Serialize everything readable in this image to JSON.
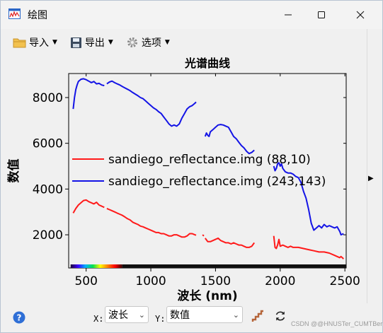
{
  "window": {
    "title": "绘图",
    "app_icon": "waveform-icon",
    "controls": [
      "minimize-icon",
      "maximize-icon",
      "close-icon"
    ]
  },
  "toolbar": {
    "import_label": "导入",
    "export_label": "导出",
    "options_label": "选项"
  },
  "bottombar": {
    "x_label": "X:",
    "x_value": "波长",
    "y_label": "Y:",
    "y_value": "数值",
    "watermark": "CSDN @@HNUSTer_CUMTBer"
  },
  "colors": {
    "series1": "#ff1a1a",
    "series2": "#1414e6",
    "background": "#f0f0f0"
  },
  "chart_data": {
    "type": "line",
    "title": "光谱曲线",
    "xlabel": "波长 (nm)",
    "ylabel": "数值",
    "xlim": [
      365,
      2510
    ],
    "ylim": [
      550,
      9050
    ],
    "xticks": [
      500,
      1000,
      1500,
      2000,
      2500
    ],
    "yticks": [
      2000,
      4000,
      6000,
      8000
    ],
    "legend_position": "center-left",
    "spectrum_strip": true,
    "series": [
      {
        "name": "sandiego_reflectance.img (88,10)",
        "color": "#ff1a1a",
        "segments": [
          [
            [
              400,
              2950
            ],
            [
              420,
              3150
            ],
            [
              440,
              3300
            ],
            [
              460,
              3400
            ],
            [
              480,
              3500
            ],
            [
              500,
              3520
            ],
            [
              520,
              3450
            ],
            [
              540,
              3400
            ],
            [
              560,
              3350
            ],
            [
              580,
              3420
            ],
            [
              600,
              3300
            ],
            [
              620,
              3250
            ],
            [
              640,
              3200
            ]
          ],
          [
            [
              660,
              3150
            ],
            [
              680,
              3100
            ],
            [
              700,
              3050
            ],
            [
              720,
              3000
            ],
            [
              740,
              2950
            ],
            [
              760,
              2900
            ],
            [
              780,
              2850
            ],
            [
              800,
              2780
            ],
            [
              820,
              2700
            ],
            [
              840,
              2650
            ],
            [
              860,
              2550
            ],
            [
              880,
              2500
            ],
            [
              900,
              2450
            ],
            [
              920,
              2380
            ],
            [
              940,
              2350
            ],
            [
              960,
              2300
            ],
            [
              980,
              2250
            ],
            [
              1000,
              2200
            ],
            [
              1020,
              2150
            ],
            [
              1040,
              2100
            ],
            [
              1060,
              2100
            ],
            [
              1080,
              2050
            ],
            [
              1100,
              2050
            ],
            [
              1120,
              2000
            ],
            [
              1140,
              1950
            ],
            [
              1160,
              1950
            ],
            [
              1180,
              2000
            ],
            [
              1200,
              2000
            ],
            [
              1220,
              1950
            ],
            [
              1240,
              1900
            ],
            [
              1260,
              1900
            ],
            [
              1280,
              1950
            ],
            [
              1300,
              2050
            ],
            [
              1320,
              2050
            ],
            [
              1340,
              2000
            ],
            [
              1350,
              1980
            ]
          ],
          [
            [
              1400,
              2000
            ],
            [
              1410,
              1950
            ]
          ],
          [
            [
              1420,
              1850
            ],
            [
              1440,
              1700
            ],
            [
              1460,
              1700
            ],
            [
              1480,
              1750
            ],
            [
              1500,
              1800
            ],
            [
              1520,
              1850
            ],
            [
              1540,
              1750
            ],
            [
              1560,
              1700
            ],
            [
              1580,
              1650
            ],
            [
              1600,
              1650
            ],
            [
              1620,
              1600
            ],
            [
              1640,
              1650
            ],
            [
              1660,
              1600
            ],
            [
              1680,
              1550
            ],
            [
              1700,
              1550
            ],
            [
              1720,
              1500
            ],
            [
              1740,
              1450
            ],
            [
              1760,
              1450
            ],
            [
              1780,
              1500
            ],
            [
              1800,
              1650
            ]
          ],
          [
            [
              1950,
              1950
            ],
            [
              1960,
              1450
            ],
            [
              1970,
              1400
            ],
            [
              1980,
              1550
            ],
            [
              1990,
              1800
            ],
            [
              2000,
              1500
            ],
            [
              2020,
              1550
            ],
            [
              2040,
              1500
            ],
            [
              2060,
              1450
            ],
            [
              2080,
              1500
            ],
            [
              2100,
              1450
            ],
            [
              2140,
              1450
            ],
            [
              2180,
              1400
            ],
            [
              2220,
              1350
            ],
            [
              2260,
              1300
            ],
            [
              2300,
              1250
            ],
            [
              2340,
              1250
            ],
            [
              2380,
              1200
            ],
            [
              2420,
              1100
            ],
            [
              2440,
              1050
            ],
            [
              2460,
              1000
            ],
            [
              2470,
              1050
            ],
            [
              2490,
              950
            ]
          ]
        ]
      },
      {
        "name": "sandiego_reflectance.img (243,143)",
        "color": "#1414e6",
        "segments": [
          [
            [
              400,
              7500
            ],
            [
              410,
              8000
            ],
            [
              420,
              8350
            ],
            [
              430,
              8550
            ],
            [
              440,
              8700
            ],
            [
              460,
              8800
            ],
            [
              480,
              8820
            ],
            [
              500,
              8780
            ],
            [
              520,
              8720
            ],
            [
              540,
              8650
            ],
            [
              560,
              8700
            ],
            [
              580,
              8600
            ],
            [
              600,
              8620
            ],
            [
              620,
              8550
            ],
            [
              640,
              8520
            ]
          ],
          [
            [
              660,
              8600
            ],
            [
              680,
              8680
            ],
            [
              700,
              8720
            ],
            [
              720,
              8650
            ],
            [
              740,
              8600
            ],
            [
              760,
              8550
            ],
            [
              780,
              8480
            ],
            [
              800,
              8420
            ],
            [
              820,
              8360
            ],
            [
              840,
              8300
            ],
            [
              860,
              8220
            ],
            [
              880,
              8150
            ],
            [
              900,
              8080
            ],
            [
              920,
              8000
            ],
            [
              940,
              7950
            ],
            [
              960,
              7850
            ],
            [
              980,
              7750
            ],
            [
              1000,
              7650
            ],
            [
              1020,
              7550
            ],
            [
              1040,
              7480
            ],
            [
              1060,
              7380
            ],
            [
              1080,
              7300
            ],
            [
              1100,
              7150
            ],
            [
              1120,
              7000
            ],
            [
              1140,
              6850
            ],
            [
              1160,
              6750
            ],
            [
              1180,
              6800
            ],
            [
              1200,
              6750
            ],
            [
              1220,
              6850
            ],
            [
              1240,
              7100
            ],
            [
              1260,
              7300
            ],
            [
              1280,
              7500
            ],
            [
              1300,
              7600
            ],
            [
              1320,
              7650
            ],
            [
              1340,
              7750
            ],
            [
              1350,
              7800
            ]
          ],
          [
            [
              1420,
              6300
            ],
            [
              1430,
              6450
            ],
            [
              1440,
              6350
            ],
            [
              1450,
              6300
            ],
            [
              1460,
              6500
            ],
            [
              1480,
              6600
            ],
            [
              1500,
              6700
            ],
            [
              1520,
              6800
            ],
            [
              1540,
              6820
            ],
            [
              1560,
              6800
            ],
            [
              1580,
              6750
            ],
            [
              1600,
              6700
            ],
            [
              1620,
              6500
            ],
            [
              1640,
              6300
            ],
            [
              1660,
              6200
            ],
            [
              1680,
              6050
            ],
            [
              1700,
              5900
            ],
            [
              1720,
              5800
            ],
            [
              1740,
              5650
            ],
            [
              1760,
              5550
            ],
            [
              1780,
              5600
            ],
            [
              1800,
              5700
            ]
          ],
          [
            [
              1950,
              5000
            ],
            [
              1960,
              4800
            ],
            [
              1970,
              4900
            ],
            [
              1980,
              5100
            ],
            [
              1990,
              5150
            ],
            [
              2000,
              5000
            ],
            [
              2010,
              5100
            ],
            [
              2020,
              4900
            ],
            [
              2040,
              4750
            ],
            [
              2060,
              4700
            ],
            [
              2080,
              4700
            ],
            [
              2100,
              4650
            ],
            [
              2120,
              4550
            ],
            [
              2140,
              4500
            ],
            [
              2160,
              4300
            ],
            [
              2180,
              3900
            ],
            [
              2200,
              3600
            ],
            [
              2220,
              3100
            ],
            [
              2240,
              2500
            ],
            [
              2260,
              2200
            ],
            [
              2280,
              2300
            ],
            [
              2300,
              2400
            ],
            [
              2320,
              2300
            ],
            [
              2340,
              2450
            ],
            [
              2360,
              2350
            ],
            [
              2380,
              2400
            ],
            [
              2400,
              2350
            ],
            [
              2420,
              2300
            ],
            [
              2440,
              2350
            ],
            [
              2460,
              2150
            ],
            [
              2470,
              2000
            ],
            [
              2490,
              2050
            ]
          ]
        ]
      }
    ],
    "legend": [
      {
        "label": "sandiego_reflectance.img (88,10)",
        "color": "#ff1a1a"
      },
      {
        "label": "sandiego_reflectance.img (243,143)",
        "color": "#1414e6"
      }
    ]
  }
}
